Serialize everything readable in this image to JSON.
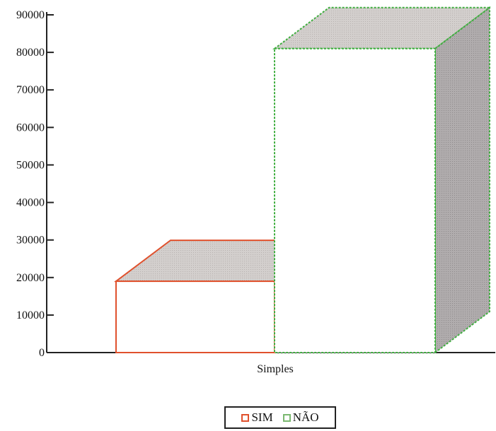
{
  "chart_data": {
    "type": "bar",
    "style": "3d",
    "categories": [
      "Simples"
    ],
    "series": [
      {
        "name": "SIM",
        "values": [
          19000
        ]
      },
      {
        "name": "NÃO",
        "values": [
          81000
        ]
      }
    ],
    "ylim": [
      0,
      90000
    ],
    "yticks": [
      "0",
      "10000",
      "20000",
      "30000",
      "40000",
      "50000",
      "60000",
      "70000",
      "80000",
      "90000"
    ],
    "legend": {
      "placement": "bottom-center",
      "items": [
        {
          "label": "SIM",
          "color": "#e0512d"
        },
        {
          "label": "NÃO",
          "color": "#7ab870"
        }
      ]
    },
    "colors": {
      "sim": "#e0512d",
      "nao": "#3fae3f",
      "shade": "#c9c3c1",
      "side": "#a7a3a4"
    }
  }
}
